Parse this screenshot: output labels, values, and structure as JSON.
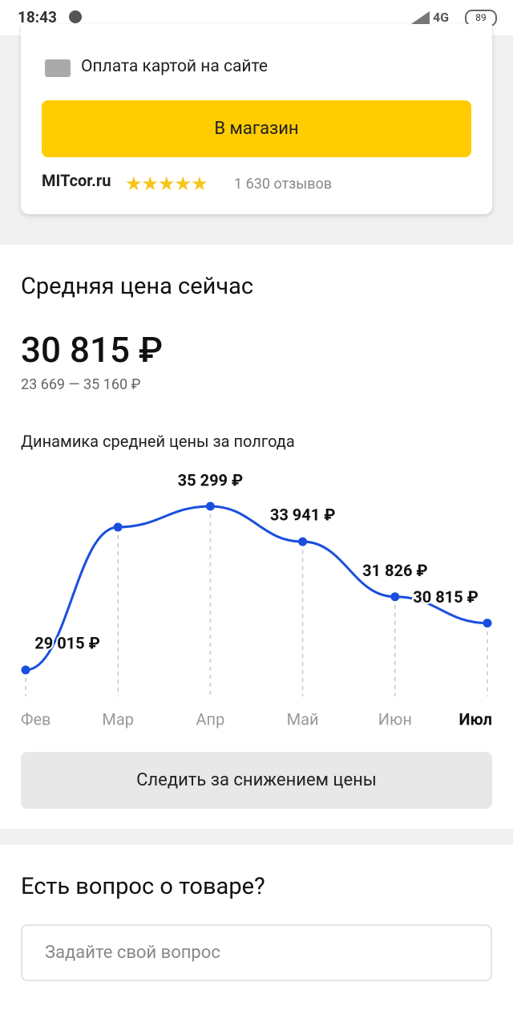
{
  "status_bar": {
    "time": "18:43",
    "network": "4G",
    "battery": "89"
  },
  "offer": {
    "payment": "Оплата картой на сайте",
    "button": "В магазин",
    "shop": "MITcor.ru",
    "rating": 5,
    "reviews": "1 630 отзывов"
  },
  "price": {
    "heading": "Средняя цена сейчас",
    "current": "30 815 ₽",
    "range": "23 669 — 35 160 ₽"
  },
  "chart_data": {
    "type": "line",
    "title": "Динамика средней цены за полгода",
    "categories": [
      "Фев",
      "Мар",
      "Апр",
      "Май",
      "Июн",
      "Июл"
    ],
    "values": [
      29015,
      34500,
      35299,
      33941,
      31826,
      30815
    ],
    "value_labels": [
      "29 015 ₽",
      null,
      "35 299 ₽",
      "33 941 ₽",
      "31 826 ₽",
      "30 815 ₽"
    ],
    "color": "#1a4fdd"
  },
  "track_button": "Следить за снижением цены",
  "question": {
    "heading": "Есть вопрос о товаре?",
    "placeholder": "Задайте свой вопрос"
  }
}
